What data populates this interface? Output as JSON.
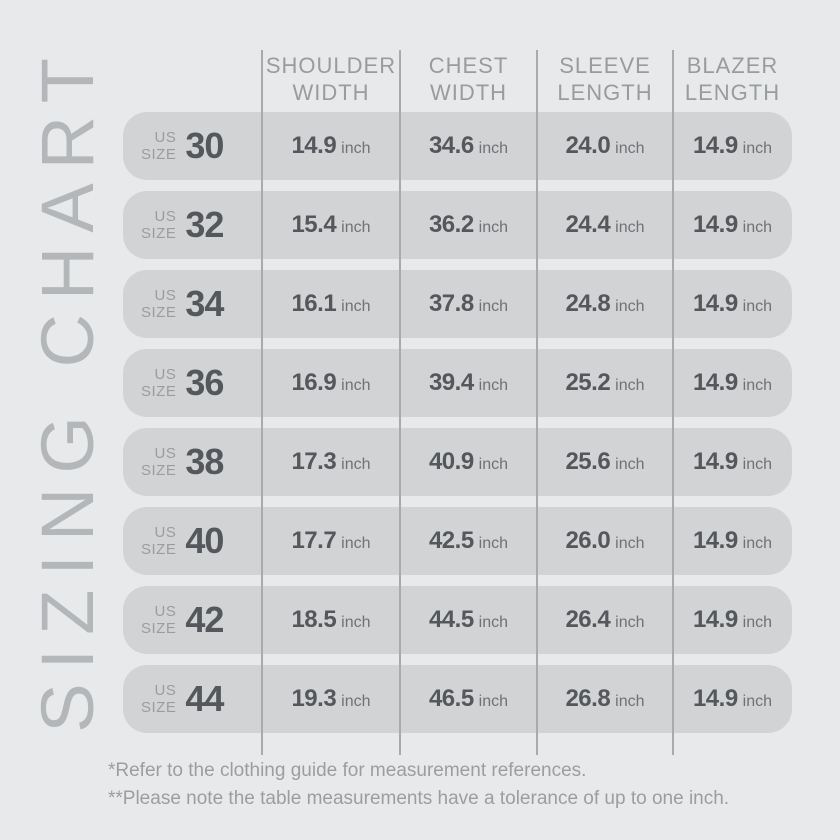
{
  "title": "SIZING CHART",
  "chart_data": {
    "type": "table",
    "title": "SIZING CHART",
    "columns": [
      "US SIZE",
      "SHOULDER WIDTH",
      "CHEST WIDTH",
      "SLEEVE LENGTH",
      "BLAZER LENGTH"
    ],
    "unit": "inch",
    "rows": [
      [
        30,
        14.9,
        34.6,
        24.0,
        14.9
      ],
      [
        32,
        15.4,
        36.2,
        24.4,
        14.9
      ],
      [
        34,
        16.1,
        37.8,
        24.8,
        14.9
      ],
      [
        36,
        16.9,
        39.4,
        25.2,
        14.9
      ],
      [
        38,
        17.3,
        40.9,
        25.6,
        14.9
      ],
      [
        40,
        17.7,
        42.5,
        26.0,
        14.9
      ],
      [
        42,
        18.5,
        44.5,
        26.4,
        14.9
      ],
      [
        44,
        19.3,
        46.5,
        26.8,
        14.9
      ]
    ],
    "footnotes": [
      "*Refer to the clothing guide for measurement references.",
      "**Please note the table measurements have a tolerance of up to one inch."
    ]
  },
  "table": {
    "us_label": "US",
    "size_label": "SIZE",
    "unit": "inch",
    "columns": [
      {
        "line1": "SHOULDER",
        "line2": "WIDTH"
      },
      {
        "line1": "CHEST",
        "line2": "WIDTH"
      },
      {
        "line1": "SLEEVE",
        "line2": "LENGTH"
      },
      {
        "line1": "BLAZER",
        "line2": "LENGTH"
      }
    ],
    "rows": [
      {
        "size": "30",
        "shoulder": "14.9",
        "chest": "34.6",
        "sleeve": "24.0",
        "blazer": "14.9"
      },
      {
        "size": "32",
        "shoulder": "15.4",
        "chest": "36.2",
        "sleeve": "24.4",
        "blazer": "14.9"
      },
      {
        "size": "34",
        "shoulder": "16.1",
        "chest": "37.8",
        "sleeve": "24.8",
        "blazer": "14.9"
      },
      {
        "size": "36",
        "shoulder": "16.9",
        "chest": "39.4",
        "sleeve": "25.2",
        "blazer": "14.9"
      },
      {
        "size": "38",
        "shoulder": "17.3",
        "chest": "40.9",
        "sleeve": "25.6",
        "blazer": "14.9"
      },
      {
        "size": "40",
        "shoulder": "17.7",
        "chest": "42.5",
        "sleeve": "26.0",
        "blazer": "14.9"
      },
      {
        "size": "42",
        "shoulder": "18.5",
        "chest": "44.5",
        "sleeve": "26.4",
        "blazer": "14.9"
      },
      {
        "size": "44",
        "shoulder": "19.3",
        "chest": "46.5",
        "sleeve": "26.8",
        "blazer": "14.9"
      }
    ]
  },
  "footnotes": {
    "line1": "*Refer to the clothing guide for measurement references.",
    "line2": "**Please note the table measurements have a tolerance of up to one inch."
  },
  "colors": {
    "background": "#e8e9ea",
    "row_pill": "#d2d3d5",
    "separator": "#a8abae",
    "header_text": "#989c9f",
    "value_text": "#54575b",
    "muted_text": "#9a9da0",
    "title_text": "#b4b7b9"
  }
}
